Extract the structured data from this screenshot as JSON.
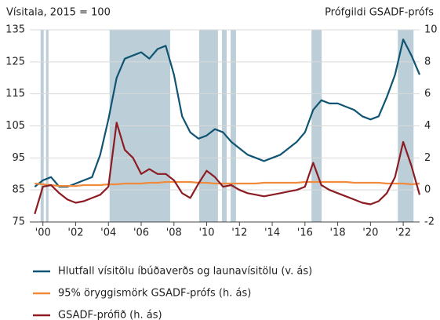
{
  "chart_data": {
    "type": "line",
    "y_label": "Vísitala, 2015 = 100",
    "y2_label": "Prófgildi GSADF-prófs",
    "x": [
      1999.5,
      2000,
      2000.5,
      2001,
      2001.5,
      2002,
      2002.5,
      2003,
      2003.5,
      2004,
      2004.5,
      2005,
      2005.5,
      2006,
      2006.5,
      2007,
      2007.5,
      2008,
      2008.5,
      2009,
      2009.5,
      2010,
      2010.5,
      2011,
      2011.5,
      2012,
      2012.5,
      2013,
      2013.5,
      2014,
      2014.5,
      2015,
      2015.5,
      2016,
      2016.5,
      2017,
      2017.5,
      2018,
      2018.5,
      2019,
      2019.5,
      2020,
      2020.5,
      2021,
      2021.5,
      2022,
      2022.5,
      2023
    ],
    "series": [
      {
        "name": "Hlutfall vísitölu íbúðaverðs og launavísitölu (v. ás)",
        "color": "#0f5473",
        "axis": "y",
        "values": [
          86,
          88,
          89,
          86,
          86,
          87,
          88,
          89,
          96,
          107,
          120,
          126,
          127,
          128,
          126,
          129,
          130,
          121,
          108,
          103,
          101,
          102,
          104,
          103,
          100,
          98,
          96,
          95,
          94,
          95,
          96,
          98,
          100,
          103,
          110,
          113,
          112,
          112,
          111,
          110,
          108,
          107,
          108,
          114,
          121,
          132,
          127,
          121
        ]
      },
      {
        "name": "95% öryggismörk GSADF-prófs (h. ás)",
        "color": "#f08a3c",
        "axis": "y2",
        "values": [
          0.4,
          0.35,
          0.3,
          0.25,
          0.25,
          0.25,
          0.3,
          0.3,
          0.3,
          0.35,
          0.35,
          0.4,
          0.4,
          0.4,
          0.45,
          0.45,
          0.5,
          0.5,
          0.5,
          0.5,
          0.45,
          0.45,
          0.4,
          0.4,
          0.4,
          0.4,
          0.4,
          0.4,
          0.45,
          0.45,
          0.45,
          0.45,
          0.45,
          0.5,
          0.5,
          0.5,
          0.5,
          0.5,
          0.5,
          0.45,
          0.45,
          0.45,
          0.45,
          0.4,
          0.4,
          0.4,
          0.35,
          0.4
        ]
      },
      {
        "name": "GSADF-prófið (h. ás)",
        "color": "#8c1c22",
        "axis": "y2",
        "values": [
          -1.5,
          0.2,
          0.3,
          -0.2,
          -0.6,
          -0.8,
          -0.7,
          -0.5,
          -0.3,
          0.2,
          4.2,
          2.5,
          2.0,
          1.0,
          1.3,
          1.0,
          1.0,
          0.6,
          -0.2,
          -0.5,
          0.4,
          1.2,
          0.8,
          0.2,
          0.3,
          0.0,
          -0.2,
          -0.3,
          -0.4,
          -0.3,
          -0.2,
          -0.1,
          0.0,
          0.2,
          1.7,
          0.3,
          0.0,
          -0.2,
          -0.4,
          -0.6,
          -0.8,
          -0.9,
          -0.7,
          -0.2,
          0.8,
          3.0,
          1.5,
          -0.3
        ]
      }
    ],
    "shaded_periods": [
      [
        1999.86,
        2000.05
      ],
      [
        2000.19,
        2000.34
      ],
      [
        2004.07,
        2007.77
      ],
      [
        2009.54,
        2010.69
      ],
      [
        2010.93,
        2011.22
      ],
      [
        2011.46,
        2011.79
      ],
      [
        2016.4,
        2017.02
      ],
      [
        2021.67,
        2022.63
      ]
    ],
    "shade_color": "#bccfd8",
    "xlim": [
      1999.2,
      2023.0
    ],
    "xticks": [
      {
        "value": 2000,
        "label": "'00"
      },
      {
        "value": 2002,
        "label": "'02"
      },
      {
        "value": 2004,
        "label": "'04"
      },
      {
        "value": 2006,
        "label": "'06"
      },
      {
        "value": 2008,
        "label": "'08"
      },
      {
        "value": 2010,
        "label": "'10"
      },
      {
        "value": 2012,
        "label": "'12"
      },
      {
        "value": 2014,
        "label": "'14"
      },
      {
        "value": 2016,
        "label": "'16"
      },
      {
        "value": 2018,
        "label": "'18"
      },
      {
        "value": 2020,
        "label": "'20"
      },
      {
        "value": 2022,
        "label": "'22"
      }
    ],
    "ylim": [
      75,
      135
    ],
    "yticks": [
      75,
      85,
      95,
      105,
      115,
      125,
      135
    ],
    "y2lim": [
      -2,
      10
    ],
    "y2ticks": [
      -2,
      0,
      2,
      4,
      6,
      8,
      10
    ],
    "grid": true
  }
}
